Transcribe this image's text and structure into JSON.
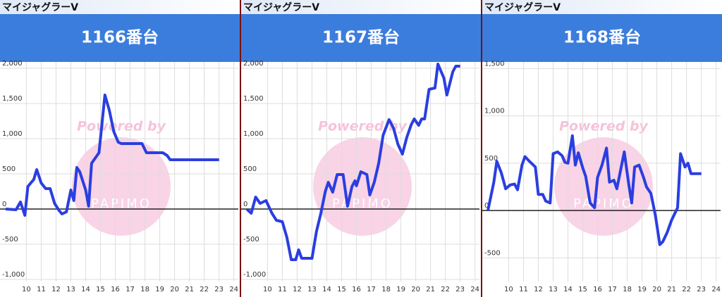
{
  "chart_data": [
    {
      "type": "line",
      "header": "マイジャグラーV",
      "title": "1166番台",
      "watermark": {
        "line1": "Powered by",
        "line2": "PAPIMO"
      },
      "color": "#2a3ee0",
      "grid": true,
      "xlim": [
        8.6,
        24.3
      ],
      "ylim": [
        -1030,
        2090
      ],
      "xticks": [
        10,
        11,
        12,
        13,
        14,
        15,
        16,
        17,
        18,
        19,
        20,
        21,
        22,
        23,
        24
      ],
      "yticks": [
        {
          "value": -1000,
          "label": "-1,000"
        },
        -500,
        0,
        500,
        {
          "value": 1000,
          "label": "1,000"
        },
        {
          "value": 1500,
          "label": "1,500"
        },
        {
          "value": 2000,
          "label": "2,000"
        }
      ],
      "x": [
        8.6,
        9.3,
        9.6,
        9.9,
        10.1,
        10.5,
        10.7,
        11.0,
        11.3,
        11.6,
        11.9,
        12.2,
        12.4,
        12.7,
        13.0,
        13.2,
        13.4,
        13.6,
        14.0,
        14.2,
        14.4,
        14.9,
        15.3,
        15.6,
        15.9,
        16.2,
        16.4,
        17.0,
        17.8,
        18.1,
        19.2,
        19.5,
        19.7,
        23.0
      ],
      "values": [
        0,
        -10,
        100,
        -90,
        320,
        420,
        560,
        370,
        290,
        290,
        80,
        -20,
        -70,
        -40,
        270,
        120,
        590,
        530,
        270,
        40,
        650,
        800,
        1620,
        1400,
        1100,
        950,
        930,
        930,
        930,
        800,
        800,
        760,
        700,
        700
      ]
    },
    {
      "type": "line",
      "header": "マイジャグラーV",
      "title": "1167番台",
      "watermark": {
        "line1": "Powered by",
        "line2": "PAPIMO"
      },
      "color": "#2a3ee0",
      "grid": true,
      "xlim": [
        8.6,
        24.3
      ],
      "ylim": [
        -1030,
        2090
      ],
      "xticks": [
        10,
        11,
        12,
        13,
        14,
        15,
        16,
        17,
        18,
        19,
        20,
        21,
        22,
        23,
        24
      ],
      "yticks": [
        {
          "value": -1000,
          "label": "-1,000"
        },
        -500,
        0,
        500,
        {
          "value": 1000,
          "label": "1,000"
        },
        {
          "value": 1500,
          "label": "1,500"
        },
        {
          "value": 2000,
          "label": "2,000"
        }
      ],
      "x": [
        8.6,
        8.9,
        9.2,
        9.5,
        9.9,
        10.3,
        10.6,
        11.0,
        11.3,
        11.6,
        11.9,
        12.1,
        12.3,
        13.0,
        13.3,
        13.6,
        13.9,
        14.1,
        14.4,
        14.7,
        15.1,
        15.4,
        15.7,
        15.9,
        16.0,
        16.3,
        16.7,
        16.9,
        17.2,
        17.5,
        17.8,
        18.2,
        18.5,
        18.8,
        19.1,
        19.4,
        19.7,
        19.9,
        20.2,
        20.4,
        20.6,
        20.9,
        21.3,
        21.5,
        21.9,
        22.1,
        22.5,
        22.7,
        23.0
      ],
      "values": [
        0,
        -60,
        170,
        80,
        120,
        -60,
        -160,
        -180,
        -400,
        -720,
        -720,
        -580,
        -700,
        -700,
        -320,
        -60,
        250,
        380,
        240,
        490,
        490,
        40,
        320,
        400,
        330,
        530,
        490,
        200,
        380,
        650,
        1050,
        1270,
        1150,
        920,
        780,
        1020,
        1200,
        1280,
        1190,
        1280,
        1280,
        1700,
        1720,
        2060,
        1860,
        1620,
        1950,
        2030,
        2030
      ]
    },
    {
      "type": "line",
      "header": "マイジャグラーV",
      "title": "1168番台",
      "watermark": {
        "line1": "Powered by",
        "line2": "PAPIMO"
      },
      "color": "#2a3ee0",
      "grid": true,
      "xlim": [
        8.6,
        24.3
      ],
      "ylim": [
        -750,
        1570
      ],
      "xticks": [
        10,
        11,
        12,
        13,
        14,
        15,
        16,
        17,
        18,
        19,
        20,
        21,
        22,
        23,
        24
      ],
      "yticks": [
        -500,
        0,
        500,
        {
          "value": 1000,
          "label": "1,000"
        },
        {
          "value": 1500,
          "label": "1,500"
        }
      ],
      "x": [
        8.6,
        9.0,
        9.2,
        9.5,
        9.8,
        10.1,
        10.4,
        10.6,
        10.9,
        11.1,
        11.4,
        11.8,
        12.0,
        12.3,
        12.5,
        12.8,
        13.0,
        13.3,
        13.6,
        13.8,
        14.0,
        14.3,
        14.5,
        14.7,
        15.0,
        15.2,
        15.5,
        15.8,
        16.0,
        16.3,
        16.6,
        16.8,
        17.1,
        17.3,
        17.8,
        18.1,
        18.3,
        18.5,
        18.8,
        19.1,
        19.3,
        19.6,
        19.9,
        20.2,
        20.4,
        20.7,
        21.0,
        21.4,
        21.6,
        21.9,
        22.1,
        22.3,
        23.0
      ],
      "values": [
        0,
        300,
        520,
        400,
        230,
        270,
        280,
        220,
        480,
        570,
        520,
        460,
        170,
        170,
        100,
        80,
        600,
        620,
        580,
        510,
        500,
        790,
        480,
        610,
        450,
        360,
        80,
        30,
        350,
        480,
        660,
        300,
        320,
        230,
        620,
        280,
        80,
        460,
        480,
        350,
        250,
        180,
        -50,
        -360,
        -330,
        -230,
        -100,
        30,
        600,
        460,
        500,
        390,
        390
      ]
    }
  ]
}
